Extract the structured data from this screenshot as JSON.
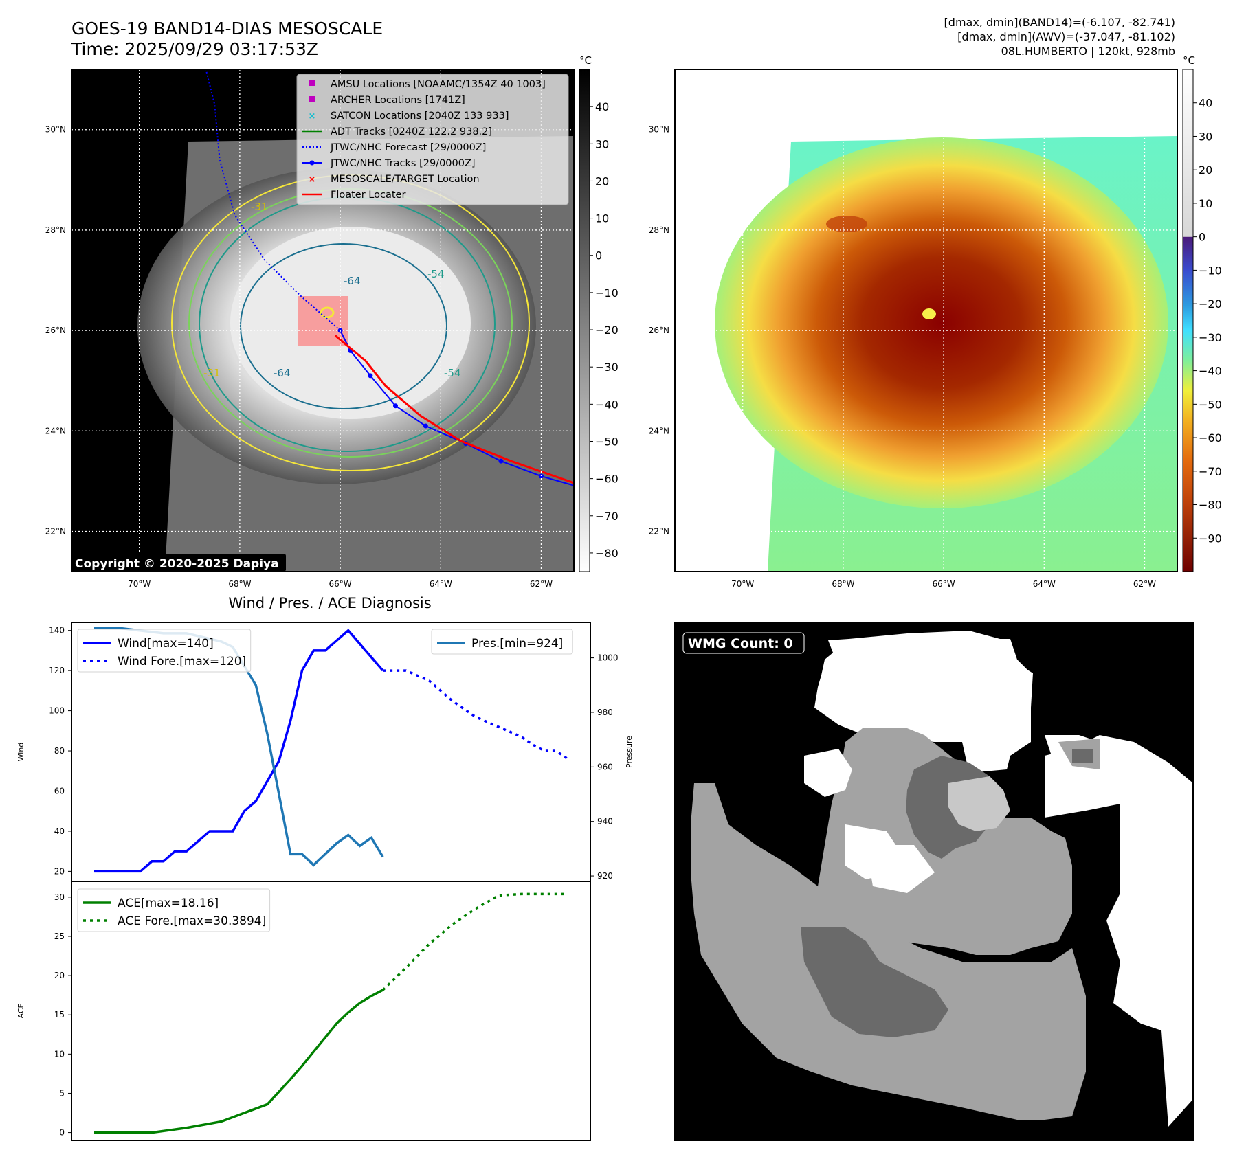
{
  "header": {
    "title_line1": "GOES-19 BAND14-DIAS MESOSCALE",
    "title_line2": "Time: 2025/09/29 03:17:53Z",
    "info_line1": "[dmax, dmin](BAND14)=(-6.107, -82.741)",
    "info_line2": "[dmax, dmin](AWV)=(-37.047, -81.102)",
    "info_line3": "08L.HUMBERTO | 120kt, 928mb"
  },
  "map": {
    "lat_labels": [
      "30°N",
      "28°N",
      "26°N",
      "24°N",
      "22°N"
    ],
    "lon_labels": [
      "70°W",
      "68°W",
      "66°W",
      "64°W",
      "62°W"
    ],
    "lat_values": [
      30,
      28,
      26,
      24,
      22
    ],
    "lon_values": [
      -70,
      -68,
      -66,
      -64,
      -62
    ],
    "lat_range": [
      21.2,
      31.2
    ],
    "lon_range": [
      -71.35,
      -61.35
    ],
    "copyright": "Copyright © 2020-2025 Dapiya",
    "contour_labels": [
      "-64",
      "-64",
      "-54",
      "-54",
      "-31",
      "-31"
    ],
    "legend": [
      {
        "label": "AMSU Locations [NOAAMC/1354Z 40 1003]",
        "color": "#bf00bf",
        "marker": "square"
      },
      {
        "label": "ARCHER Locations [1741Z]",
        "color": "#bf00bf",
        "marker": "square"
      },
      {
        "label": "SATCON Locations [2040Z 133 933]",
        "color": "#17becf",
        "marker": "x"
      },
      {
        "label": "ADT Tracks [0240Z 122.2 938.2]",
        "color": "#008000",
        "marker": "line"
      },
      {
        "label": "JTWC/NHC Forecast [29/0000Z]",
        "color": "#0000ff",
        "marker": "dotted"
      },
      {
        "label": "JTWC/NHC Tracks [29/0000Z]",
        "color": "#0000ff",
        "marker": "line-dot"
      },
      {
        "label": "MESOSCALE/TARGET Location",
        "color": "#ff0000",
        "marker": "x"
      },
      {
        "label": "Floater Locater",
        "color": "#ff0000",
        "marker": "line"
      }
    ],
    "best_track": [
      [
        22.9,
        -61.3
      ],
      [
        23.1,
        -62.0
      ],
      [
        23.4,
        -62.8
      ],
      [
        23.75,
        -63.5
      ],
      [
        24.1,
        -64.3
      ],
      [
        24.5,
        -64.9
      ],
      [
        25.1,
        -65.4
      ],
      [
        25.6,
        -65.8
      ],
      [
        26.0,
        -66.0
      ]
    ],
    "forecast_track": [
      [
        26.0,
        -66.0
      ],
      [
        26.7,
        -66.8
      ],
      [
        27.4,
        -67.5
      ],
      [
        28.3,
        -68.1
      ],
      [
        29.4,
        -68.4
      ],
      [
        30.5,
        -68.5
      ],
      [
        31.3,
        -68.7
      ]
    ],
    "floater_track": [
      [
        22.95,
        -61.3
      ],
      [
        23.4,
        -62.6
      ],
      [
        23.8,
        -63.6
      ],
      [
        24.3,
        -64.4
      ],
      [
        24.9,
        -65.1
      ],
      [
        25.4,
        -65.5
      ],
      [
        25.9,
        -66.1
      ]
    ]
  },
  "colorbars": {
    "unit": "°C",
    "band14_ticks": [
      "40",
      "30",
      "20",
      "10",
      "0",
      "−10",
      "−20",
      "−30",
      "−40",
      "−50",
      "−60",
      "−70",
      "−80"
    ],
    "band14_values": [
      40,
      30,
      20,
      10,
      0,
      -10,
      -20,
      -30,
      -40,
      -50,
      -60,
      -70,
      -80
    ],
    "band14_range": [
      -85,
      50
    ],
    "awv_ticks": [
      "40",
      "30",
      "20",
      "10",
      "0",
      "−10",
      "−20",
      "−30",
      "−40",
      "−50",
      "−60",
      "−70",
      "−80",
      "−90"
    ],
    "awv_values": [
      40,
      30,
      20,
      10,
      0,
      -10,
      -20,
      -30,
      -40,
      -50,
      -60,
      -70,
      -80,
      -90
    ],
    "awv_range": [
      -100,
      50
    ]
  },
  "wmg": {
    "label": "WMG Count: 0"
  },
  "chart_data": [
    {
      "type": "line",
      "title": "Wind / Pres. / ACE Diagnosis",
      "ylabel": "Wind",
      "y2label": "Pressure",
      "ylim": [
        15,
        144
      ],
      "y2lim": [
        918,
        1013
      ],
      "yticks": [
        20,
        40,
        60,
        80,
        100,
        120,
        140
      ],
      "y2ticks": [
        920,
        940,
        960,
        980,
        1000
      ],
      "ytick_labels": [
        "20",
        "40",
        "60",
        "80",
        "100",
        "120",
        "140"
      ],
      "y2tick_labels": [
        "920",
        "940",
        "960",
        "980",
        "1000"
      ],
      "x_count": 42,
      "series": [
        {
          "name": "Wind[max=140]",
          "axis": "left",
          "style": "solid",
          "color": "#0000ff",
          "x": [
            0,
            4,
            5,
            6,
            7,
            8,
            9,
            10,
            11,
            12,
            13,
            14,
            15,
            16,
            17,
            18,
            19,
            20,
            21,
            22,
            25
          ],
          "values": [
            20,
            20,
            25,
            25,
            30,
            30,
            35,
            40,
            40,
            40,
            50,
            55,
            65,
            75,
            95,
            120,
            130,
            130,
            135,
            140,
            120
          ]
        },
        {
          "name": "Wind Fore.[max=120]",
          "axis": "left",
          "style": "dotted",
          "color": "#0000ff",
          "x": [
            25,
            27,
            29,
            31,
            33,
            35,
            37,
            38,
            39,
            40,
            41
          ],
          "values": [
            120,
            120,
            115,
            105,
            97,
            92,
            87,
            83,
            80,
            80,
            76
          ]
        },
        {
          "name": "Pres.[min=924]",
          "axis": "right",
          "style": "solid",
          "color": "#1f77b4",
          "x": [
            0,
            2,
            4,
            6,
            8,
            9,
            10,
            11,
            12,
            13,
            14,
            15,
            16,
            17,
            18,
            19,
            20,
            21,
            22,
            23,
            24,
            25
          ],
          "values": [
            1011,
            1011,
            1010,
            1009,
            1009,
            1008,
            1007,
            1006,
            1004,
            997,
            990,
            972,
            950,
            928,
            928,
            924,
            928,
            932,
            935,
            931,
            934,
            927
          ]
        }
      ]
    },
    {
      "type": "line",
      "ylabel": "ACE",
      "ylim": [
        -1,
        32
      ],
      "yticks": [
        0,
        5,
        10,
        15,
        20,
        25,
        30
      ],
      "ytick_labels": [
        "0",
        "5",
        "10",
        "15",
        "20",
        "25",
        "30"
      ],
      "x_count": 42,
      "series": [
        {
          "name": "ACE[max=18.16]",
          "style": "solid",
          "color": "#008000",
          "x": [
            0,
            5,
            8,
            11,
            13,
            15,
            16,
            17,
            18,
            19,
            20,
            21,
            22,
            23,
            24,
            25
          ],
          "values": [
            0,
            0,
            0.6,
            1.4,
            2.5,
            3.6,
            5.2,
            6.8,
            8.5,
            10.3,
            12.1,
            13.9,
            15.3,
            16.5,
            17.4,
            18.16
          ]
        },
        {
          "name": "ACE Fore.[max=30.3894]",
          "style": "dotted",
          "color": "#008000",
          "x": [
            25,
            27,
            29,
            31,
            33,
            35,
            37,
            39,
            41
          ],
          "values": [
            18.16,
            21,
            24,
            26.5,
            28.5,
            30.2,
            30.39,
            30.39,
            30.39
          ]
        }
      ]
    }
  ]
}
